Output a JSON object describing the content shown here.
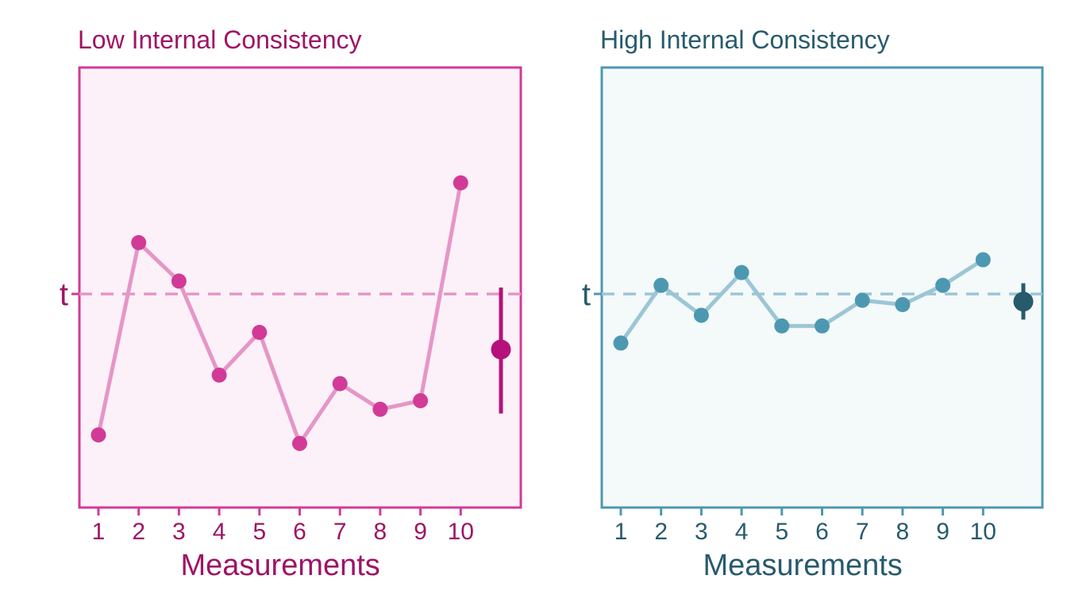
{
  "chart_data": [
    {
      "type": "line",
      "title": "Low Internal Consistency",
      "xlabel": "Measurements",
      "ylabel": "",
      "x": [
        1,
        2,
        3,
        4,
        5,
        6,
        7,
        8,
        9,
        10
      ],
      "series": [
        {
          "values": [
            -3.3,
            1.2,
            0.3,
            -1.9,
            -0.9,
            -3.5,
            -2.1,
            -2.7,
            -2.5,
            2.6
          ]
        }
      ],
      "reference_line": {
        "label": "t",
        "value": 0,
        "style": "dashed"
      },
      "summary": {
        "mean": -1.3,
        "error_low": -2.8,
        "error_high": 0.15
      },
      "ylim": [
        -5,
        5.3
      ],
      "grid": false,
      "colors": {
        "points": "#d23a98",
        "line": "#e596c8",
        "panel_bg": "#fcf1f8",
        "border": "#d23a98",
        "text": "#9e1466",
        "summary": "#b5117a"
      }
    },
    {
      "type": "line",
      "title": "High Internal Consistency",
      "xlabel": "Measurements",
      "ylabel": "",
      "x": [
        1,
        2,
        3,
        4,
        5,
        6,
        7,
        8,
        9,
        10
      ],
      "series": [
        {
          "values": [
            -1.15,
            0.2,
            -0.5,
            0.5,
            -0.75,
            -0.75,
            -0.15,
            -0.25,
            0.2,
            0.8
          ]
        }
      ],
      "reference_line": {
        "label": "t",
        "value": 0,
        "style": "dashed"
      },
      "summary": {
        "mean": -0.18,
        "error_low": -0.6,
        "error_high": 0.25
      },
      "ylim": [
        -5,
        5.3
      ],
      "grid": false,
      "colors": {
        "points": "#4d98b1",
        "line": "#9cc6d5",
        "panel_bg": "#f4f9fa",
        "border": "#4d98b1",
        "text": "#285a6e",
        "summary": "#285a6e"
      }
    }
  ]
}
